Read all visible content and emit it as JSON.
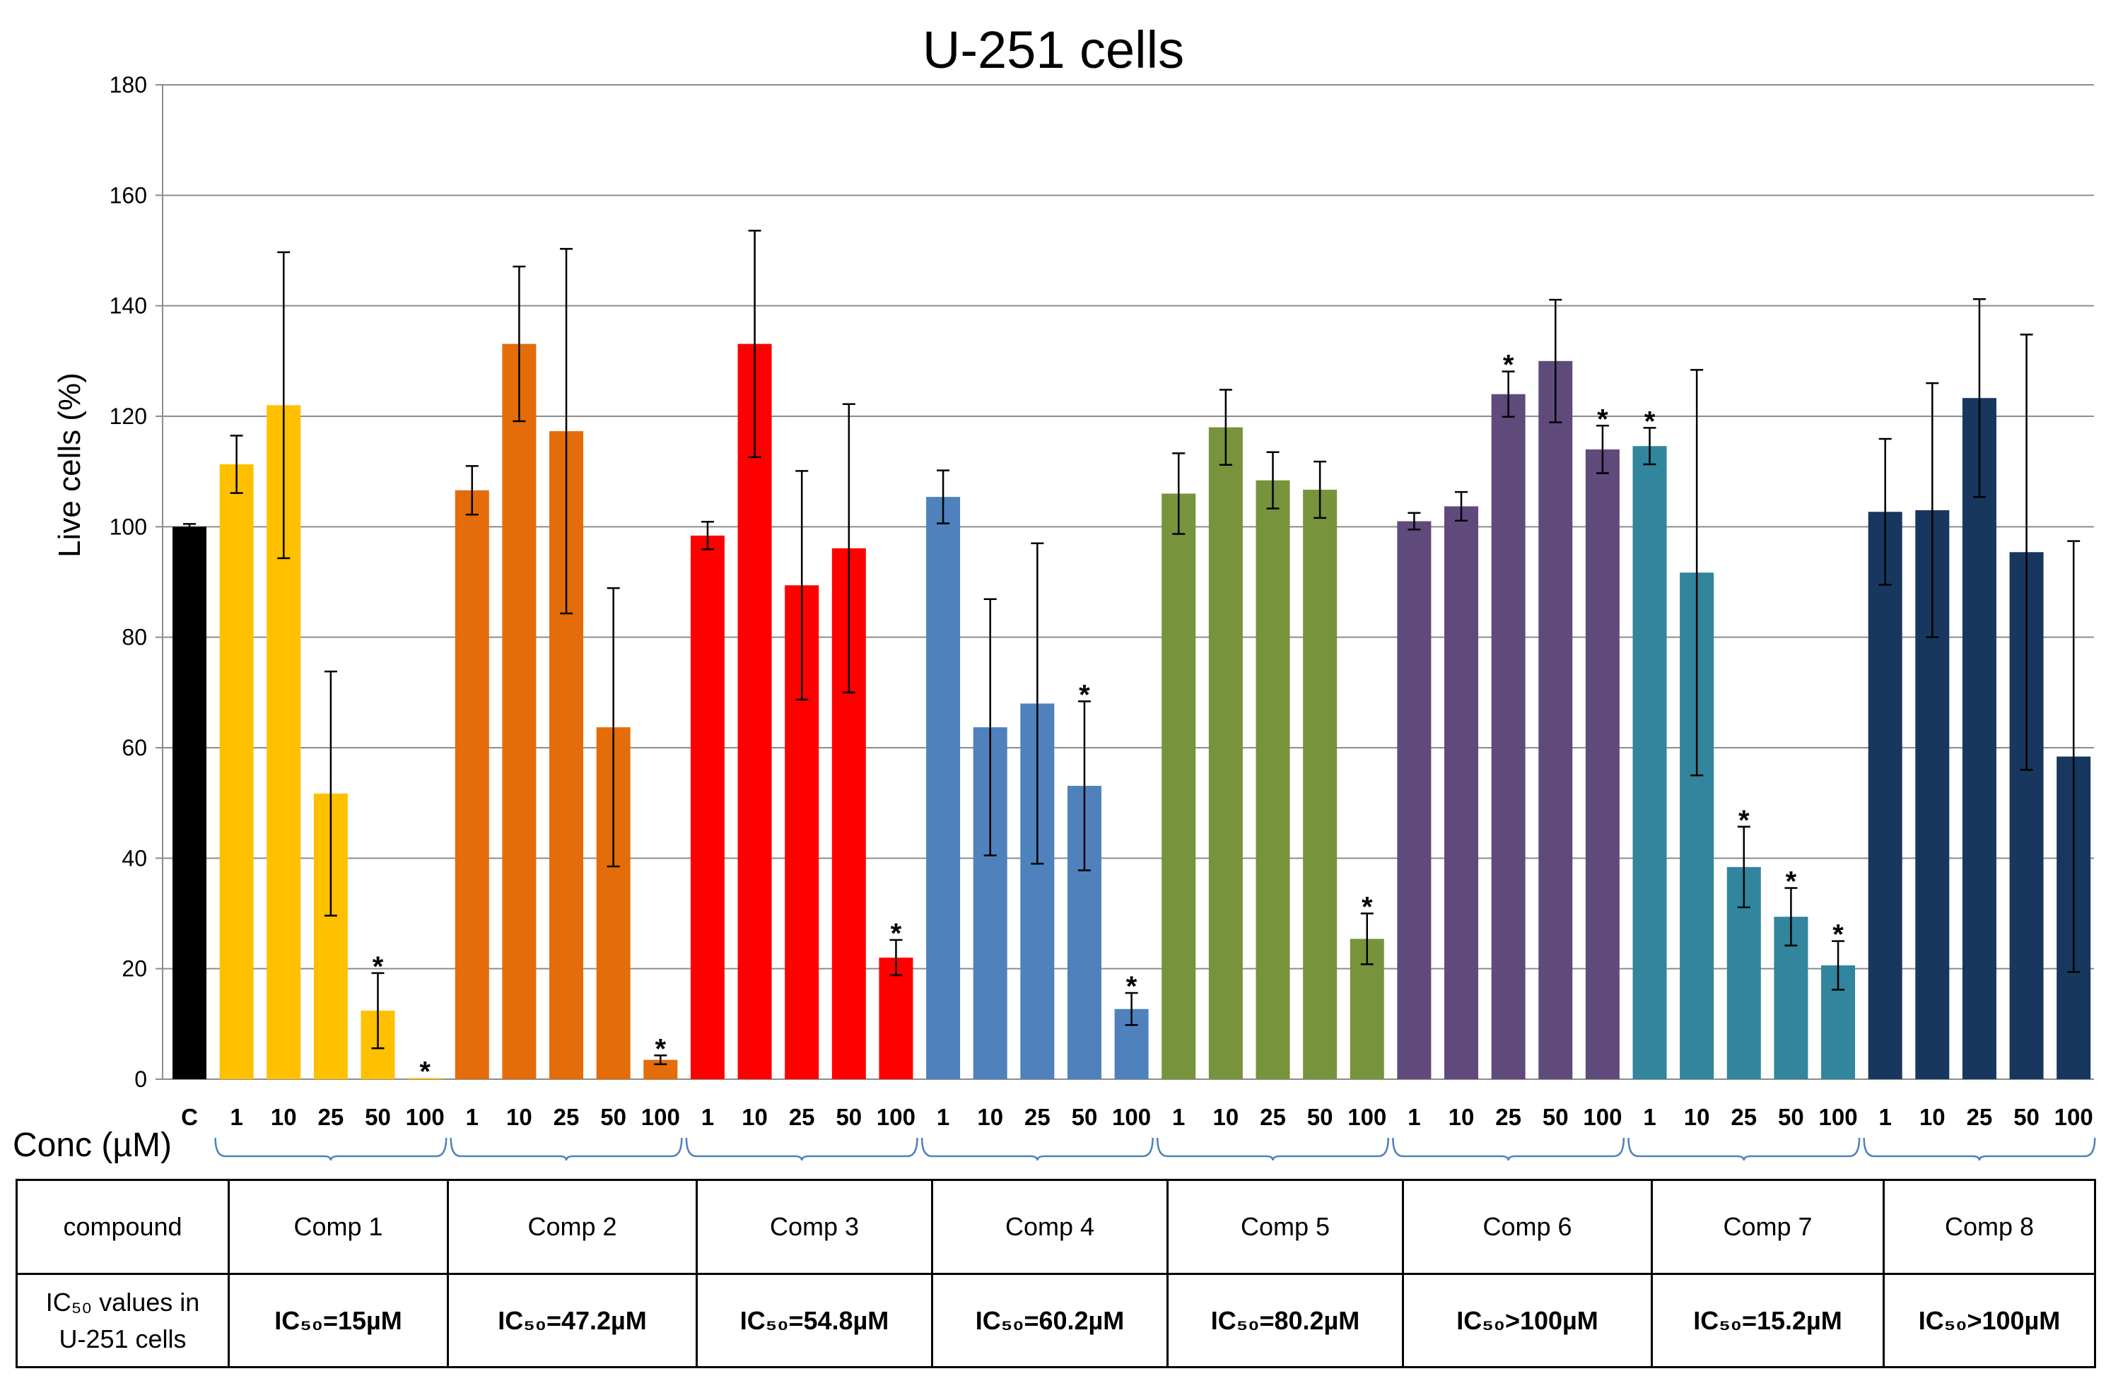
{
  "chart_data": {
    "type": "bar",
    "title": "U-251 cells",
    "ylabel": "Live cells (%)",
    "xlabel": "Conc (µM)",
    "ylim": [
      0,
      180
    ],
    "yticks": [
      0,
      20,
      40,
      60,
      80,
      100,
      120,
      140,
      160,
      180
    ],
    "grid": true,
    "control": {
      "label": "C",
      "value": 100,
      "error": 0.5,
      "color": "#000000"
    },
    "series": [
      {
        "name": "Comp 1",
        "color": "#FFC000",
        "categories": [
          "1",
          "10",
          "25",
          "50",
          "100"
        ],
        "values": [
          111.3,
          122.0,
          51.7,
          12.4,
          0.2
        ],
        "errors": [
          5.2,
          27.7,
          22.1,
          6.8,
          0
        ],
        "significant": [
          false,
          false,
          false,
          true,
          true
        ],
        "ic50": "IC₅₀=15µM"
      },
      {
        "name": "Comp 2",
        "color": "#E46C0A",
        "categories": [
          "1",
          "10",
          "25",
          "50",
          "100"
        ],
        "values": [
          106.6,
          133.1,
          117.3,
          63.7,
          3.5
        ],
        "errors": [
          4.4,
          14.0,
          33.0,
          25.2,
          0.8
        ],
        "significant": [
          false,
          false,
          false,
          false,
          true
        ],
        "ic50": "IC₅₀=47.2µM"
      },
      {
        "name": "Comp 3",
        "color": "#FF0000",
        "categories": [
          "1",
          "10",
          "25",
          "50",
          "100"
        ],
        "values": [
          98.4,
          133.1,
          89.4,
          96.1,
          22.0
        ],
        "errors": [
          2.5,
          20.5,
          20.7,
          26.1,
          3.2
        ],
        "significant": [
          false,
          false,
          false,
          false,
          true
        ],
        "ic50": "IC₅₀=54.8µM"
      },
      {
        "name": "Comp 4",
        "color": "#4F81BD",
        "categories": [
          "1",
          "10",
          "25",
          "50",
          "100"
        ],
        "values": [
          105.4,
          63.7,
          68.0,
          53.1,
          12.7
        ],
        "errors": [
          4.8,
          23.2,
          29.0,
          15.3,
          2.9
        ],
        "significant": [
          false,
          false,
          false,
          true,
          true
        ],
        "ic50": "IC₅₀=60.2µM"
      },
      {
        "name": "Comp 5",
        "color": "#77933C",
        "categories": [
          "1",
          "10",
          "25",
          "50",
          "100"
        ],
        "values": [
          106.0,
          118.0,
          108.4,
          106.7,
          25.4
        ],
        "errors": [
          7.3,
          6.8,
          5.1,
          5.1,
          4.6
        ],
        "significant": [
          false,
          false,
          false,
          false,
          true
        ],
        "ic50": "IC₅₀=80.2µM"
      },
      {
        "name": "Comp 6",
        "color": "#604A7B",
        "categories": [
          "1",
          "10",
          "25",
          "50",
          "100"
        ],
        "values": [
          101.0,
          103.7,
          124.0,
          130.0,
          114.0
        ],
        "errors": [
          1.5,
          2.6,
          4.1,
          11.1,
          4.3
        ],
        "significant": [
          false,
          false,
          true,
          false,
          true
        ],
        "ic50": "IC₅₀>100µM"
      },
      {
        "name": "Comp 7",
        "color": "#31859C",
        "categories": [
          "1",
          "10",
          "25",
          "50",
          "100"
        ],
        "values": [
          114.6,
          91.7,
          38.4,
          29.4,
          20.6
        ],
        "errors": [
          3.3,
          36.7,
          7.3,
          5.2,
          4.4
        ],
        "significant": [
          true,
          false,
          true,
          true,
          true
        ],
        "ic50": "IC₅₀=15.2µM"
      },
      {
        "name": "Comp 8",
        "color": "#17375E",
        "categories": [
          "1",
          "10",
          "25",
          "50",
          "100"
        ],
        "values": [
          102.7,
          103.0,
          123.3,
          95.4,
          58.4
        ],
        "errors": [
          13.2,
          23.0,
          17.9,
          39.4,
          39.0
        ],
        "significant": [
          false,
          false,
          false,
          false,
          false
        ],
        "ic50": "IC₅₀>100µM"
      }
    ]
  },
  "table": {
    "row1_header": "compound",
    "row2_header": "IC₅₀ values in\nU-251 cells"
  }
}
